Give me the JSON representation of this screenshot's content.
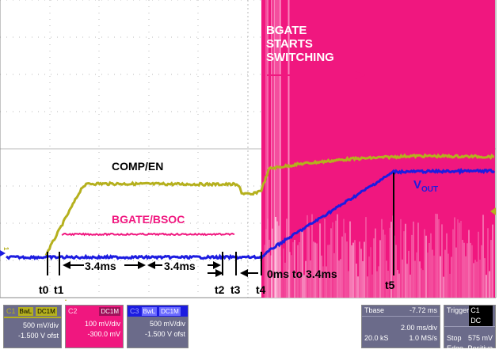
{
  "annotations": {
    "bgate_starts": [
      "BGATE",
      "STARTS",
      "SWITCHING"
    ],
    "comp_en": "COMP/EN",
    "bgate_bsoc": "BGATE/BSOC",
    "vout_main": "V",
    "vout_sub": "OUT",
    "interval_1": "3.4ms",
    "interval_2": "3.4ms",
    "interval_3": "0ms to 3.4ms",
    "time_marks": [
      "t0",
      "t1",
      "t2",
      "t3",
      "t4",
      "t5"
    ]
  },
  "channel_markers": {
    "c1": "1",
    "c3": "C3"
  },
  "colors": {
    "ch1": "#b5b01e",
    "ch2": "#f0177f",
    "ch3": "#1c1ce0",
    "grid": "#b8b8b8",
    "panel_bg": "#6b6b8a"
  },
  "channels": [
    {
      "id": "C1",
      "tags": [
        "BwL",
        "DC1M"
      ],
      "scale": "500 mV/div",
      "offset": "-1.500 V ofst"
    },
    {
      "id": "C2",
      "tags": [
        "DC1M"
      ],
      "scale": "100 mV/div",
      "offset": "-300.0 mV"
    },
    {
      "id": "C3",
      "tags": [
        "BwL",
        "DC1M"
      ],
      "scale": "500 mV/div",
      "offset": "-1.500 V ofst"
    }
  ],
  "timebase": {
    "label": "Tbase",
    "position": "-7.72 ms",
    "per_div": "2.00 ms/div",
    "samples": "20.0 kS",
    "rate": "1.0 MS/s"
  },
  "trigger": {
    "label": "Trigger",
    "channel": "C1",
    "coupling": "DC",
    "mode": "Stop",
    "level": "575 mV",
    "type": "Edge",
    "slope": "Positive"
  }
}
